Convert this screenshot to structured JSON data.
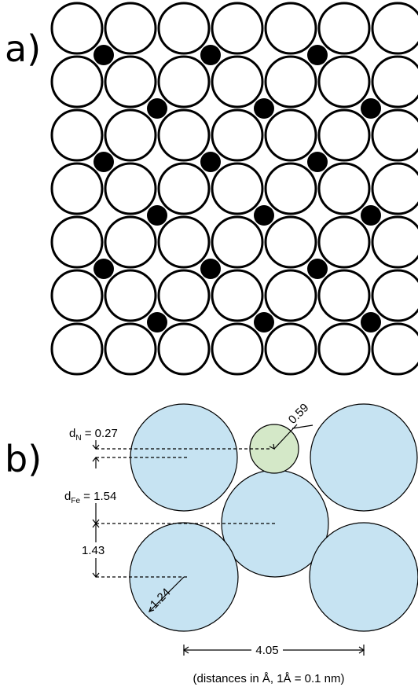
{
  "panel_a": {
    "label": "a)"
  },
  "panel_b": {
    "label": "b)",
    "d_n_prefix": "d",
    "d_n_sub": "N",
    "d_n_value": " = 0.27",
    "d_fe_prefix": "d",
    "d_fe_sub": "Fe",
    "d_fe_value": " = 1.54",
    "spacing": "1.43",
    "fe_radius": "1.24",
    "n_radius": "0.59",
    "lattice_width": "4.05",
    "caption": "(distances in Å,  1Å = 0.1 nm)"
  },
  "colors": {
    "fe_atom": "#c6e3f2",
    "n_atom": "#d4e8c8",
    "interstitial": "#000000",
    "outline": "#000000"
  }
}
